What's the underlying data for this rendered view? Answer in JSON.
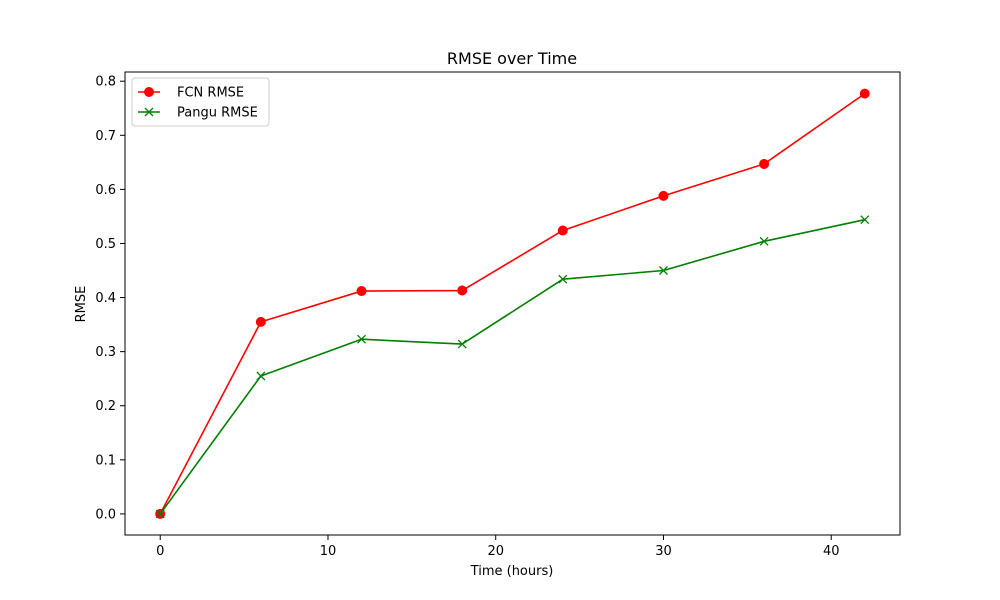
{
  "chart_data": {
    "type": "line",
    "title": "RMSE over Time",
    "xlabel": "Time (hours)",
    "ylabel": "RMSE",
    "xlim": [
      -2.1,
      44.1
    ],
    "ylim": [
      -0.039,
      0.817
    ],
    "x_ticks": [
      0,
      10,
      20,
      30,
      40
    ],
    "y_ticks": [
      0.0,
      0.1,
      0.2,
      0.3,
      0.4,
      0.5,
      0.6,
      0.7,
      0.8
    ],
    "x_tick_labels": [
      "0",
      "10",
      "20",
      "30",
      "40"
    ],
    "y_tick_labels": [
      "0.0",
      "0.1",
      "0.2",
      "0.3",
      "0.4",
      "0.5",
      "0.6",
      "0.7",
      "0.8"
    ],
    "grid": false,
    "legend_position": "top-left",
    "x": [
      0,
      6,
      12,
      18,
      24,
      30,
      36,
      42
    ],
    "series": [
      {
        "name": "FCN RMSE",
        "color": "#ff0000",
        "marker": "circle",
        "values": [
          0.0,
          0.355,
          0.412,
          0.413,
          0.524,
          0.588,
          0.647,
          0.777
        ]
      },
      {
        "name": "Pangu RMSE",
        "color": "#008000",
        "marker": "x",
        "values": [
          0.0,
          0.255,
          0.323,
          0.314,
          0.434,
          0.45,
          0.504,
          0.544
        ]
      }
    ]
  }
}
